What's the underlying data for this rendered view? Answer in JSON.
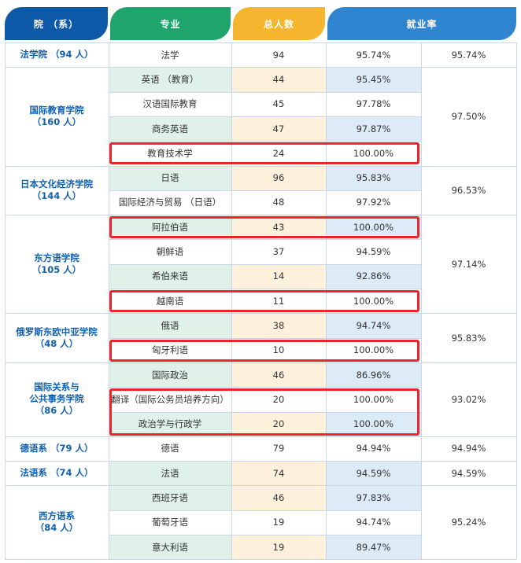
{
  "headers": {
    "dept": "院 （系）",
    "major": "专业",
    "total": "总人数",
    "rate": "就业率"
  },
  "groups": [
    {
      "dept": "法学院 （94 人）",
      "overall": "95.74%",
      "rows": [
        {
          "major": "法学",
          "total": "94",
          "rate": "95.74%",
          "highlight": false
        }
      ]
    },
    {
      "dept": "国际教育学院\n（160 人）",
      "overall": "97.50%",
      "rows": [
        {
          "major": "英语 （教育）",
          "total": "44",
          "rate": "95.45%",
          "highlight": false
        },
        {
          "major": "汉语国际教育",
          "total": "45",
          "rate": "97.78%",
          "highlight": false
        },
        {
          "major": "商务英语",
          "total": "47",
          "rate": "97.87%",
          "highlight": false
        },
        {
          "major": "教育技术学",
          "total": "24",
          "rate": "100.00%",
          "highlight": true
        }
      ]
    },
    {
      "dept": "日本文化经济学院\n（144 人）",
      "overall": "96.53%",
      "rows": [
        {
          "major": "日语",
          "total": "96",
          "rate": "95.83%",
          "highlight": false
        },
        {
          "major": "国际经济与贸易 （日语）",
          "total": "48",
          "rate": "97.92%",
          "highlight": false
        }
      ]
    },
    {
      "dept": "东方语学院\n（105 人）",
      "overall": "97.14%",
      "rows": [
        {
          "major": "阿拉伯语",
          "total": "43",
          "rate": "100.00%",
          "highlight": true
        },
        {
          "major": "朝鲜语",
          "total": "37",
          "rate": "94.59%",
          "highlight": false
        },
        {
          "major": "希伯来语",
          "total": "14",
          "rate": "92.86%",
          "highlight": false
        },
        {
          "major": "越南语",
          "total": "11",
          "rate": "100.00%",
          "highlight": true
        }
      ]
    },
    {
      "dept": "俄罗斯东欧中亚学院\n（48 人）",
      "overall": "95.83%",
      "rows": [
        {
          "major": "俄语",
          "total": "38",
          "rate": "94.74%",
          "highlight": false
        },
        {
          "major": "匈牙利语",
          "total": "10",
          "rate": "100.00%",
          "highlight": true
        }
      ]
    },
    {
      "dept": "国际关系与\n公共事务学院\n（86 人）",
      "overall": "93.02%",
      "rows": [
        {
          "major": "国际政治",
          "total": "46",
          "rate": "86.96%",
          "highlight": false
        },
        {
          "major": "翻译（国际公务员培养方向）",
          "total": "20",
          "rate": "100.00%",
          "highlight": true
        },
        {
          "major": "政治学与行政学",
          "total": "20",
          "rate": "100.00%",
          "highlight": true
        }
      ]
    },
    {
      "dept": "德语系 （79 人）",
      "overall": "94.94%",
      "rows": [
        {
          "major": "德语",
          "total": "79",
          "rate": "94.94%",
          "highlight": false
        }
      ]
    },
    {
      "dept": "法语系 （74 人）",
      "overall": "94.59%",
      "rows": [
        {
          "major": "法语",
          "total": "74",
          "rate": "94.59%",
          "highlight": false
        }
      ]
    },
    {
      "dept": "西方语系\n（84 人）",
      "overall": "95.24%",
      "rows": [
        {
          "major": "西班牙语",
          "total": "46",
          "rate": "97.83%",
          "highlight": false
        },
        {
          "major": "葡萄牙语",
          "total": "19",
          "rate": "94.74%",
          "highlight": false
        },
        {
          "major": "意大利语",
          "total": "19",
          "rate": "89.47%",
          "highlight": false
        }
      ]
    }
  ],
  "colors": {
    "header_dept": "#0f5aa8",
    "header_major": "#1fa56b",
    "header_total": "#f6b52e",
    "header_rate": "#2f85cf",
    "highlight_box": "#e8262b",
    "dept_text": "#1060b0"
  }
}
